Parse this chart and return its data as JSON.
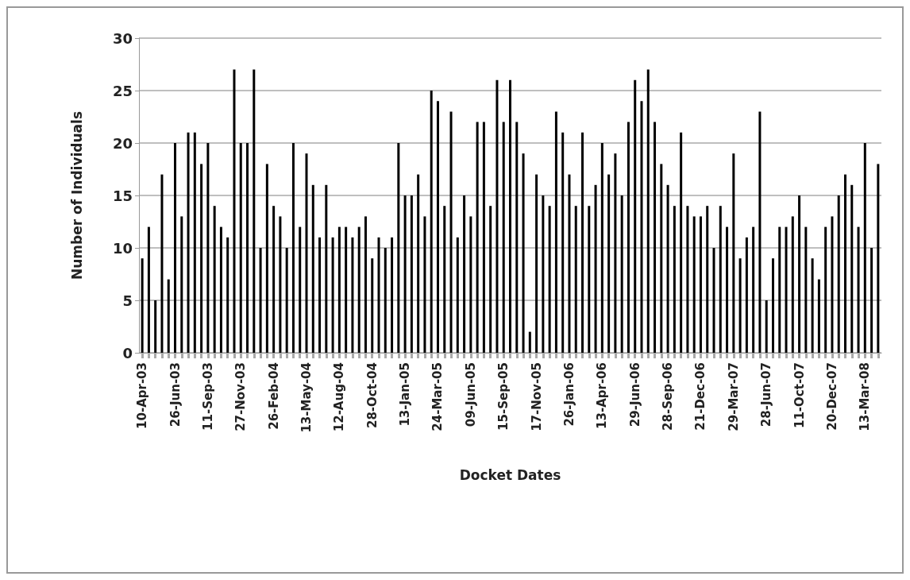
{
  "chart_data": {
    "type": "bar",
    "xlabel": "Docket Dates",
    "ylabel": "Number of Individuals",
    "categories": [
      "10-Apr-03",
      null,
      null,
      null,
      null,
      "26-Jun-03",
      null,
      null,
      null,
      null,
      "11-Sep-03",
      null,
      null,
      null,
      null,
      "27-Nov-03",
      null,
      null,
      null,
      null,
      "26-Feb-04",
      null,
      null,
      null,
      null,
      "13-May-04",
      null,
      null,
      null,
      null,
      "12-Aug-04",
      null,
      null,
      null,
      null,
      "28-Oct-04",
      null,
      null,
      null,
      null,
      "13-Jan-05",
      null,
      null,
      null,
      null,
      "24-Mar-05",
      null,
      null,
      null,
      null,
      "09-Jun-05",
      null,
      null,
      null,
      null,
      "15-Sep-05",
      null,
      null,
      null,
      null,
      "17-Nov-05",
      null,
      null,
      null,
      null,
      "26-Jan-06",
      null,
      null,
      null,
      null,
      "13-Apr-06",
      null,
      null,
      null,
      null,
      "29-Jun-06",
      null,
      null,
      null,
      null,
      "28-Sep-06",
      null,
      null,
      null,
      null,
      "21-Dec-06",
      null,
      null,
      null,
      null,
      "29-Mar-07",
      null,
      null,
      null,
      null,
      "28-Jun-07",
      null,
      null,
      null,
      null,
      "11-Oct-07",
      null,
      null,
      null,
      null,
      "20-Dec-07",
      null,
      null,
      null,
      null,
      "13-Mar-08",
      null,
      null
    ],
    "values": [
      9,
      12,
      5,
      17,
      7,
      20,
      13,
      21,
      21,
      18,
      20,
      14,
      12,
      11,
      27,
      20,
      20,
      27,
      10,
      18,
      14,
      13,
      10,
      20,
      12,
      19,
      16,
      11,
      16,
      11,
      12,
      12,
      11,
      12,
      13,
      9,
      11,
      10,
      11,
      20,
      15,
      15,
      17,
      13,
      25,
      24,
      14,
      23,
      11,
      15,
      13,
      22,
      22,
      14,
      26,
      22,
      26,
      22,
      19,
      2,
      17,
      15,
      14,
      23,
      21,
      17,
      14,
      21,
      14,
      16,
      20,
      17,
      19,
      15,
      22,
      26,
      24,
      27,
      22,
      18,
      16,
      14,
      21,
      14,
      13,
      13,
      14,
      10,
      14,
      12,
      19,
      9,
      11,
      12,
      23,
      5,
      9,
      12,
      12,
      13,
      15,
      12,
      9,
      7,
      12,
      13,
      15,
      17,
      16,
      12,
      20,
      10,
      18
    ],
    "color": "#000000",
    "ylim": [
      0,
      30
    ],
    "yticks": [
      0,
      5,
      10,
      15,
      20,
      25,
      30
    ],
    "grid": "y"
  }
}
